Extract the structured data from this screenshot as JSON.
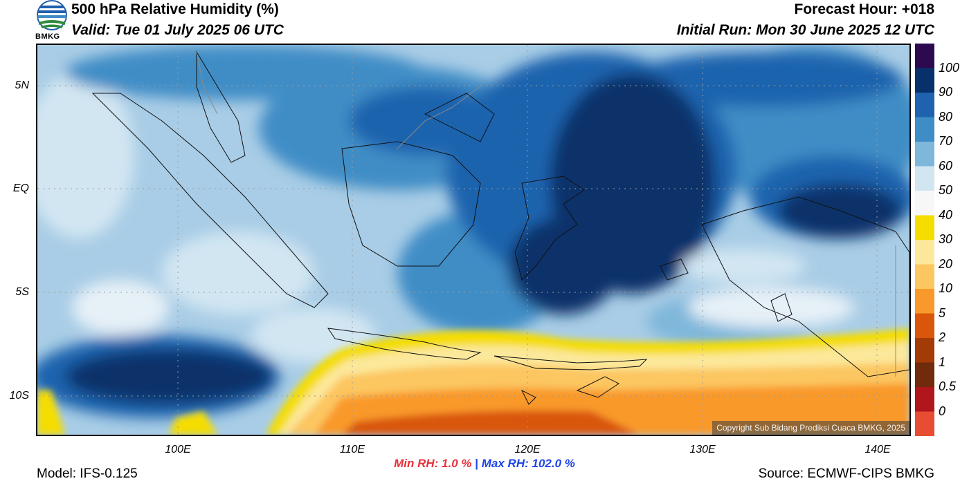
{
  "header": {
    "title": "500 hPa Relative Humidity (%)",
    "valid": "Valid: Tue 01 July 2025 06 UTC",
    "forecast_hour": "Forecast Hour: +018",
    "initial_run": "Initial Run: Mon 30 June 2025 12 UTC",
    "logo_text": "BMKG"
  },
  "map": {
    "lat_labels": [
      "5N",
      "EQ",
      "5S",
      "10S"
    ],
    "lon_labels": [
      "100E",
      "110E",
      "120E",
      "130E",
      "140E"
    ],
    "copyright": "Copyright Sub Bidang Prediksi Cuaca BMKG, 2025"
  },
  "colorbar": {
    "labels": [
      "100",
      "90",
      "80",
      "70",
      "60",
      "50",
      "40",
      "30",
      "20",
      "10",
      "5",
      "2",
      "1",
      "0.5",
      "0"
    ],
    "colors": [
      "#2d0a50",
      "#08306b",
      "#1f63ae",
      "#3f8dc6",
      "#7fb7da",
      "#d2e6f2",
      "#f7f7f7",
      "#f5dd00",
      "#fce89a",
      "#fcc660",
      "#f9992c",
      "#d9560a",
      "#a33b06",
      "#702a0c",
      "#b0161c",
      "#e84c32"
    ]
  },
  "stats": {
    "min_label": "Min RH:",
    "min_value": "1.0 %",
    "separator": "|",
    "max_label": "Max RH:",
    "max_value": "102.0 %"
  },
  "footer": {
    "model": "Model: IFS-0.125",
    "source": "Source: ECMWF-CIPS BMKG"
  }
}
